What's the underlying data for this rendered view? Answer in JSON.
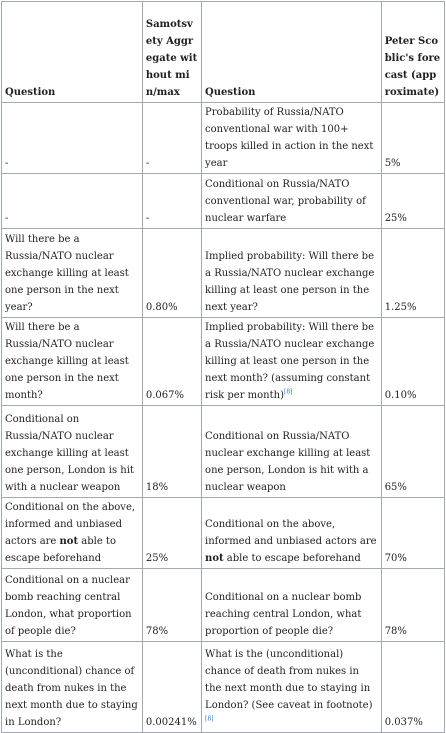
{
  "table": {
    "header": [
      "Question",
      "Samotsvety Aggregate without min/max",
      "Question",
      "Peter Scoblic's forecast (approximate)"
    ],
    "rows": [
      [
        "-",
        "-",
        "Probability of Russia/NATO conventional war with 100+ troops killed in action in the next year",
        "5%"
      ],
      [
        "-",
        "-",
        "Conditional on Russia/NATO conventional war, probability of nuclear warfare",
        "25%"
      ],
      [
        "Will there be a Russia/NATO nuclear exchange killing at least one person in the next year?",
        "0.80%",
        "Implied probability: Will there be a Russia/NATO nuclear exchange killing at least one person in the next year?",
        "1.25%"
      ],
      [
        "Will there be a Russia/NATO nuclear exchange killing at least one person in the next month?",
        "0.067%",
        {
          "text": "Implied probability: Will there be a Russia/NATO nuclear exchange killing at least one person in the next month? (assuming constant risk per month)",
          "footnote": "[8]"
        },
        "0.10%"
      ],
      [
        "Conditional on Russia/NATO nuclear exchange killing at least one person, London is hit with a nuclear weapon",
        "18%",
        "Conditional on Russia/NATO nuclear exchange killing at least one person, London is hit with a nuclear weapon",
        "65%"
      ],
      [
        {
          "text": "Conditional on the above, informed and unbiased actors are ",
          "emphasis": "not",
          "tail": " able to escape beforehand"
        },
        "25%",
        {
          "text": "Conditional on the above, informed and unbiased actors are ",
          "emphasis": "not",
          "tail": " able to escape beforehand"
        },
        "70%"
      ],
      [
        "Conditional on a nuclear bomb reaching central London, what proportion of people die?",
        "78%",
        "Conditional on a nuclear bomb reaching central London, what proportion of people die?",
        "78%"
      ],
      [
        "What is the (unconditional) chance of death from nukes in the next month due to staying in London?",
        "0.00241%",
        {
          "text": "What is the (unconditional) chance of death from nukes in the next month due to staying in London? (See caveat in footnote)",
          "footnote": "[8]"
        },
        "0.037%"
      ]
    ]
  }
}
